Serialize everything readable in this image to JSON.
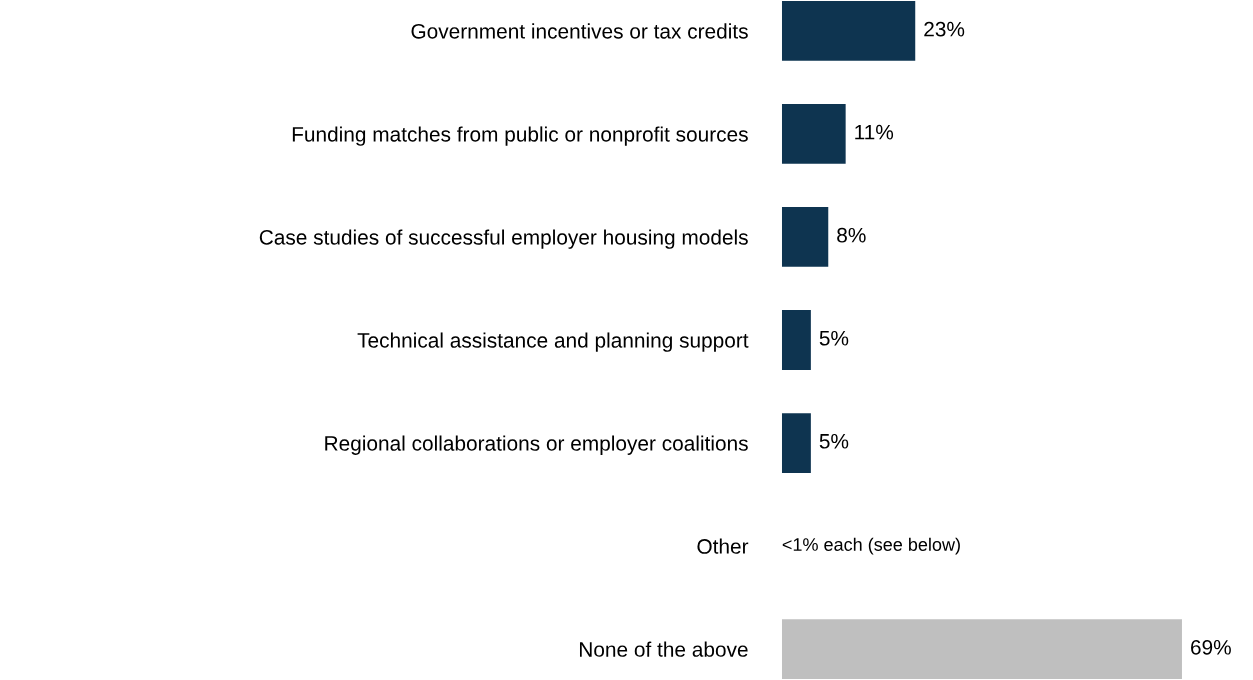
{
  "chart_data": {
    "type": "bar",
    "orientation": "horizontal",
    "categories": [
      "Government incentives or tax credits",
      "Funding matches from public or nonprofit sources",
      "Case studies of successful employer housing models",
      "Technical assistance and planning support",
      "Regional collaborations or employer coalitions",
      "Other",
      "None of the above"
    ],
    "values": [
      23,
      11,
      8,
      5,
      5,
      null,
      69
    ],
    "colors": [
      "#0e3450",
      "#0e3450",
      "#0e3450",
      "#0e3450",
      "#0e3450",
      "#0e3450",
      "#bfbfbf"
    ],
    "value_labels": [
      "23%",
      "11%",
      "8%",
      "5%",
      "5%",
      "<1% each (see below)",
      "69%"
    ],
    "grid": false,
    "legend": false
  }
}
